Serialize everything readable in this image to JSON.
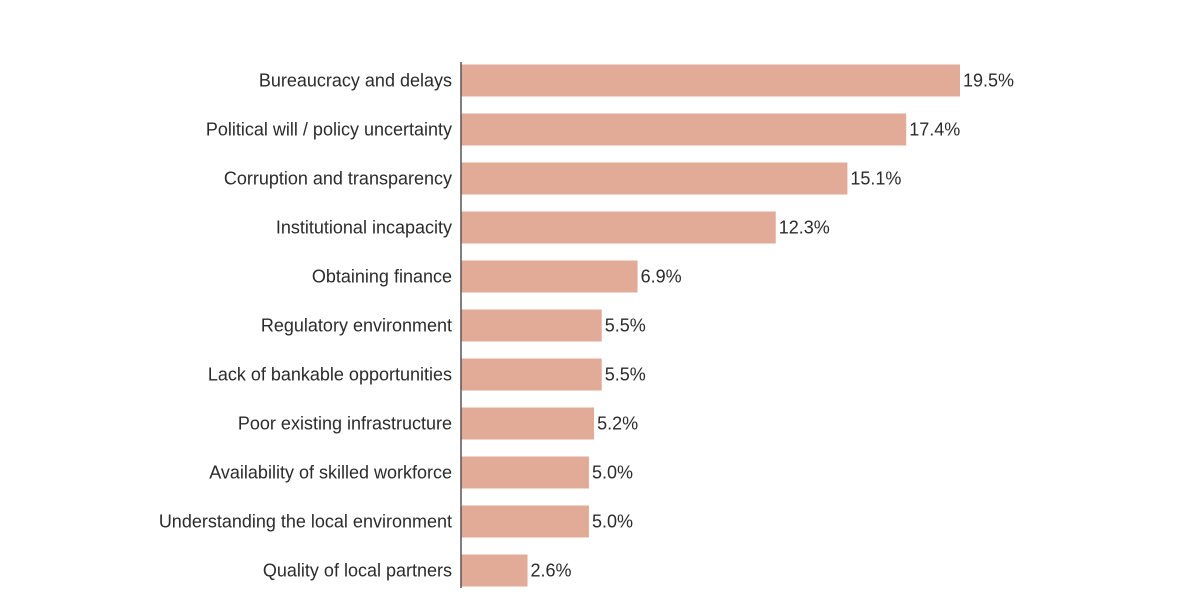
{
  "chart_data": {
    "type": "bar",
    "orientation": "horizontal",
    "categories": [
      "Bureaucracy and delays",
      "Political will / policy uncertainty",
      "Corruption and transparency",
      "Institutional incapacity",
      "Obtaining finance",
      "Regulatory environment",
      "Lack of bankable opportunities",
      "Poor existing infrastructure",
      "Availability of skilled workforce",
      "Understanding the local environment",
      "Quality of local partners"
    ],
    "values": [
      19.5,
      17.4,
      15.1,
      12.3,
      6.9,
      5.5,
      5.5,
      5.2,
      5.0,
      5.0,
      2.6
    ],
    "value_labels": [
      "19.5%",
      "17.4%",
      "15.1%",
      "12.3%",
      "6.9%",
      "5.5%",
      "5.5%",
      "5.2%",
      "5.0%",
      "5.0%",
      "2.6%"
    ],
    "xlim": [
      0,
      19.5
    ],
    "grid": false,
    "legend": "none",
    "bar_color": "#e2ab98",
    "axis_color": "#555555",
    "text_color": "#2b2b2b"
  }
}
